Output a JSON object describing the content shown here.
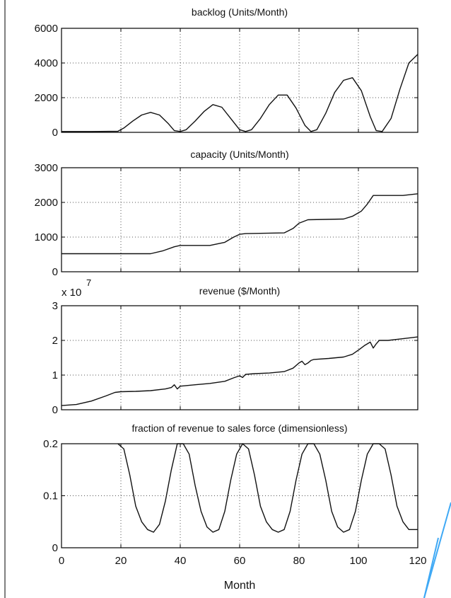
{
  "colors": {
    "line": "#111111",
    "grid": "#555555",
    "frame": "#000000",
    "deco": "#3fa9f5"
  },
  "xlabel": "Month",
  "chart_data": [
    {
      "type": "line",
      "title": "backlog (Units/Month)",
      "xlim": [
        0,
        120
      ],
      "ylim": [
        0,
        6000
      ],
      "xticks": [
        0,
        20,
        40,
        60,
        80,
        100,
        120
      ],
      "yticks": [
        0,
        2000,
        4000,
        6000
      ],
      "ytick_labels": [
        "0",
        "2000",
        "4000",
        "6000"
      ],
      "grid": true,
      "series": [
        {
          "x": [
            0,
            10,
            19,
            21,
            24,
            27,
            30,
            33,
            36,
            38,
            40,
            42,
            45,
            48,
            51,
            54,
            57,
            60,
            62,
            64,
            67,
            70,
            73,
            76,
            79,
            82,
            84,
            86,
            89,
            92,
            95,
            98,
            101,
            104,
            106,
            108,
            111,
            114,
            117,
            120
          ],
          "y": [
            50,
            50,
            60,
            250,
            650,
            1000,
            1150,
            1000,
            500,
            100,
            50,
            150,
            650,
            1200,
            1600,
            1450,
            800,
            150,
            50,
            150,
            800,
            1600,
            2150,
            2150,
            1400,
            400,
            50,
            150,
            1100,
            2300,
            3000,
            3150,
            2400,
            900,
            100,
            50,
            800,
            2500,
            4000,
            4500
          ]
        }
      ]
    },
    {
      "type": "line",
      "title": "capacity (Units/Month)",
      "xlim": [
        0,
        120
      ],
      "ylim": [
        0,
        3000
      ],
      "xticks": [
        0,
        20,
        40,
        60,
        80,
        100,
        120
      ],
      "yticks": [
        0,
        1000,
        2000,
        3000
      ],
      "ytick_labels": [
        "0",
        "1000",
        "2000",
        "3000"
      ],
      "grid": true,
      "series": [
        {
          "x": [
            0,
            30,
            34,
            38,
            40,
            50,
            55,
            58,
            60,
            62,
            75,
            78,
            80,
            83,
            95,
            98,
            101,
            103,
            105,
            115,
            120
          ],
          "y": [
            520,
            520,
            600,
            720,
            760,
            760,
            850,
            1000,
            1080,
            1100,
            1120,
            1250,
            1400,
            1500,
            1520,
            1600,
            1750,
            1950,
            2200,
            2200,
            2250
          ]
        }
      ]
    },
    {
      "type": "line",
      "title": "revenue ($/Month)",
      "exponent_label": "x 10",
      "exponent": "7",
      "xlim": [
        0,
        120
      ],
      "ylim": [
        0,
        3
      ],
      "xticks": [
        0,
        20,
        40,
        60,
        80,
        100,
        120
      ],
      "yticks": [
        0,
        1,
        2,
        3
      ],
      "ytick_labels": [
        "0",
        "1",
        "2",
        "3"
      ],
      "grid": true,
      "series": [
        {
          "x": [
            0,
            5,
            10,
            15,
            18,
            20,
            25,
            30,
            35,
            37,
            38,
            39,
            40,
            45,
            50,
            55,
            58,
            60,
            61,
            62,
            65,
            70,
            75,
            78,
            80,
            81,
            82,
            83,
            84,
            85,
            90,
            95,
            98,
            100,
            102,
            104,
            105,
            106,
            107,
            110,
            115,
            120
          ],
          "y": [
            0.12,
            0.15,
            0.25,
            0.4,
            0.5,
            0.52,
            0.53,
            0.55,
            0.6,
            0.64,
            0.72,
            0.6,
            0.68,
            0.72,
            0.76,
            0.82,
            0.92,
            0.98,
            0.93,
            1.02,
            1.04,
            1.06,
            1.1,
            1.2,
            1.35,
            1.4,
            1.3,
            1.35,
            1.42,
            1.45,
            1.48,
            1.52,
            1.6,
            1.72,
            1.85,
            1.95,
            1.78,
            1.9,
            2.0,
            2.0,
            2.05,
            2.1
          ]
        }
      ]
    },
    {
      "type": "line",
      "title": "fraction of revenue to sales force (dimensionless)",
      "xlim": [
        0,
        120
      ],
      "ylim": [
        0,
        0.2
      ],
      "xticks": [
        0,
        20,
        40,
        60,
        80,
        100,
        120
      ],
      "xtick_labels": [
        "0",
        "20",
        "40",
        "60",
        "80",
        "100",
        "120"
      ],
      "yticks": [
        0,
        0.1,
        0.2
      ],
      "ytick_labels": [
        "0",
        "0.1",
        "0.2"
      ],
      "grid": true,
      "series": [
        {
          "x": [
            19,
            21,
            23,
            25,
            27,
            29,
            31,
            33,
            35,
            37,
            39,
            41,
            43,
            45,
            47,
            49,
            51,
            53,
            55,
            57,
            59,
            61,
            63,
            65,
            67,
            69,
            71,
            73,
            75,
            77,
            79,
            81,
            83,
            85,
            87,
            89,
            91,
            93,
            95,
            97,
            99,
            101,
            103,
            105,
            107,
            109,
            111,
            113,
            115,
            117,
            120
          ],
          "y": [
            0.2,
            0.19,
            0.14,
            0.08,
            0.05,
            0.035,
            0.03,
            0.045,
            0.09,
            0.15,
            0.2,
            0.2,
            0.18,
            0.12,
            0.07,
            0.04,
            0.03,
            0.035,
            0.07,
            0.13,
            0.18,
            0.2,
            0.19,
            0.14,
            0.08,
            0.05,
            0.035,
            0.03,
            0.035,
            0.07,
            0.13,
            0.18,
            0.2,
            0.2,
            0.18,
            0.13,
            0.07,
            0.04,
            0.03,
            0.035,
            0.07,
            0.13,
            0.18,
            0.2,
            0.2,
            0.19,
            0.14,
            0.08,
            0.05,
            0.035,
            0.035
          ]
        }
      ]
    }
  ]
}
